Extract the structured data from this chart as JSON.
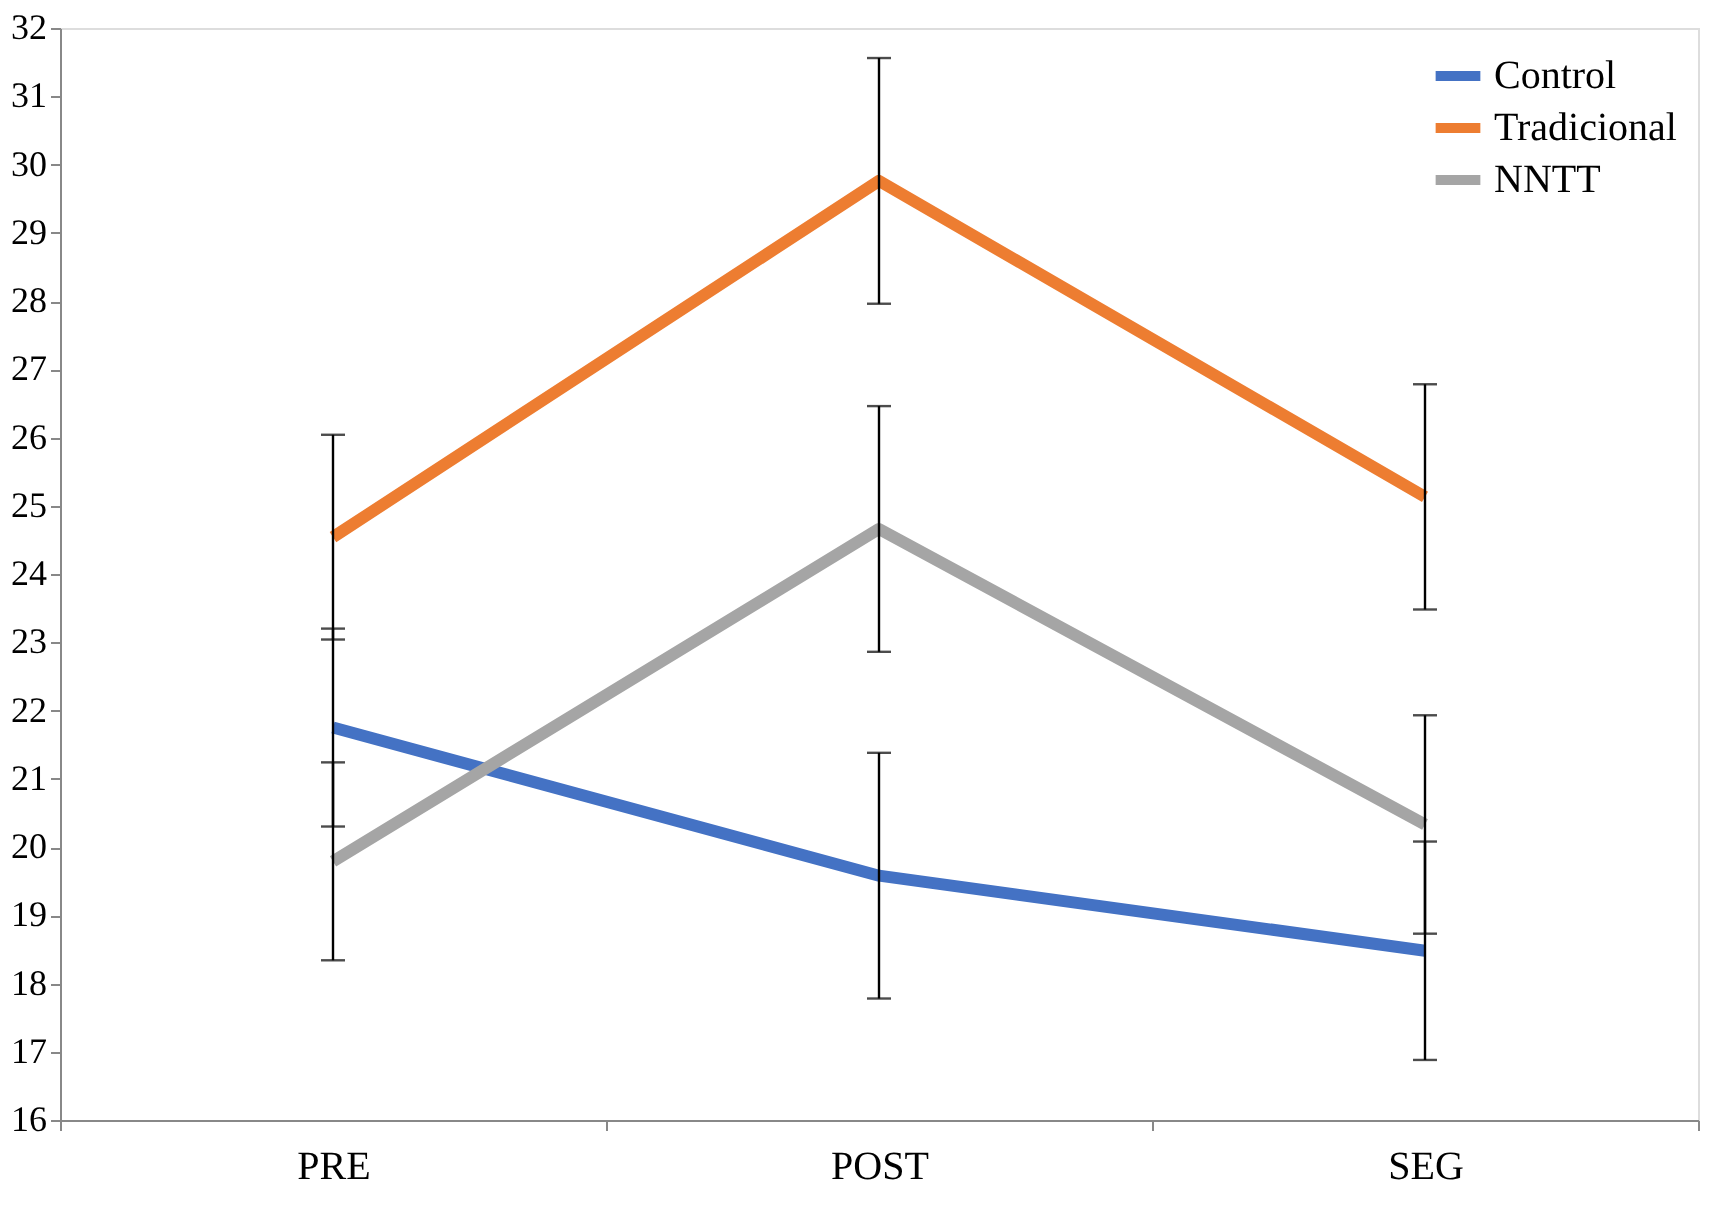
{
  "chart_data": {
    "type": "line",
    "categories": [
      "PRE",
      "POST",
      "SEG"
    ],
    "series": [
      {
        "name": "Control",
        "color": "#4472c4",
        "values": [
          21.75,
          19.58,
          18.48
        ],
        "errors": [
          1.45,
          1.8,
          1.6
        ]
      },
      {
        "name": "Tradicional",
        "color": "#ed7d31",
        "values": [
          24.54,
          29.76,
          25.13
        ],
        "errors": [
          1.5,
          1.8,
          1.65
        ]
      },
      {
        "name": "NNTT",
        "color": "#a5a5a5",
        "values": [
          19.79,
          24.66,
          20.33
        ],
        "errors": [
          1.45,
          1.8,
          1.6
        ]
      }
    ],
    "ylim": [
      16,
      32
    ],
    "yticks": [
      16,
      17,
      18,
      19,
      20,
      21,
      22,
      23,
      24,
      25,
      26,
      27,
      28,
      29,
      30,
      31,
      32
    ],
    "grid": false,
    "legend": "top right",
    "marker": "none",
    "line_style": "solid"
  }
}
